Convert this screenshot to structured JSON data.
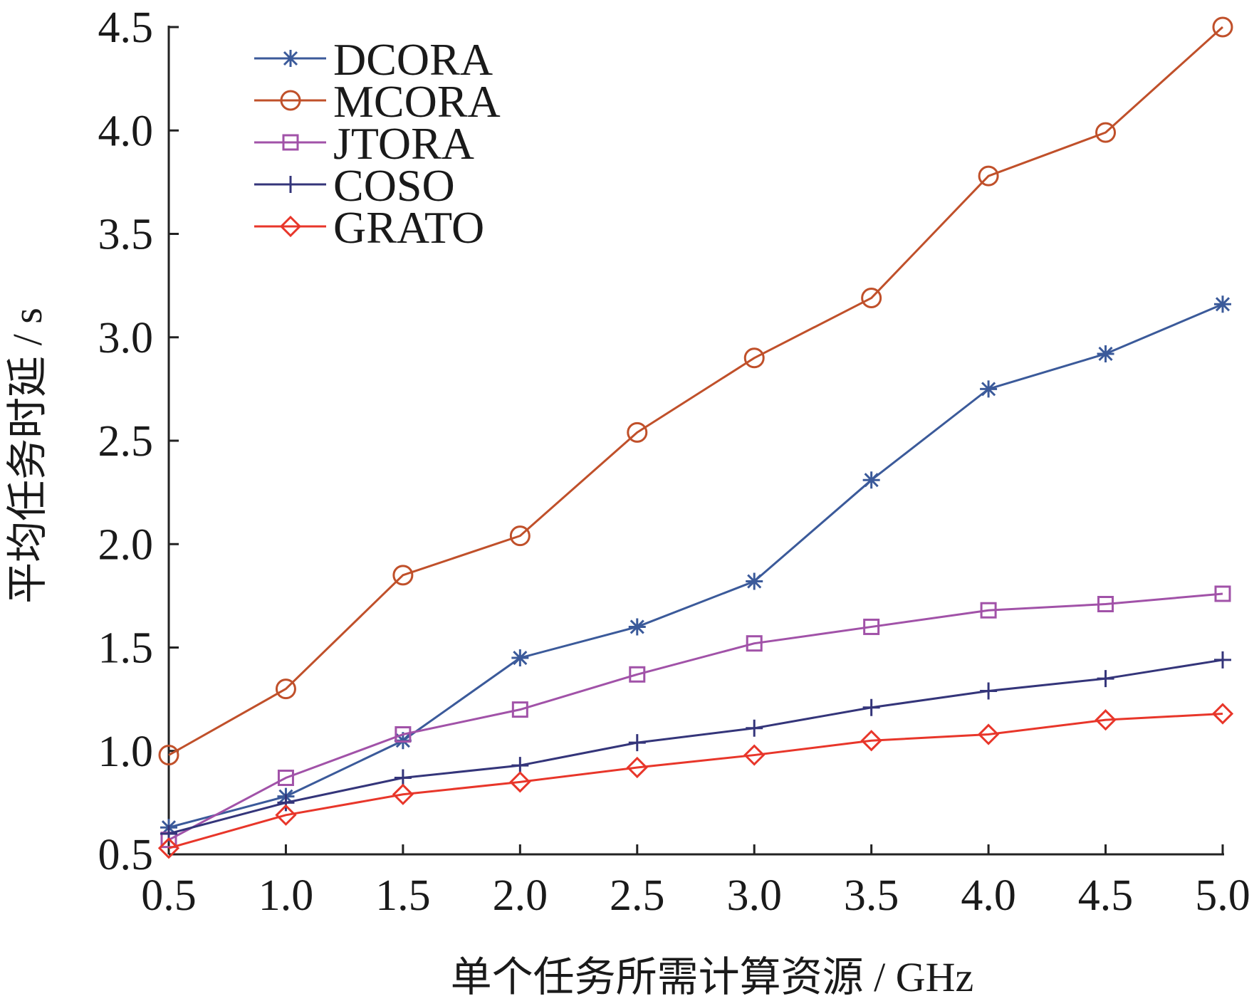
{
  "chart_data": {
    "type": "line",
    "xlabel": "单个任务所需计算资源 / GHz",
    "ylabel": "平均任务时延 / s",
    "x": [
      0.5,
      1.0,
      1.5,
      2.0,
      2.5,
      3.0,
      3.5,
      4.0,
      4.5,
      5.0
    ],
    "x_ticks": [
      "0.5",
      "1.0",
      "1.5",
      "2.0",
      "2.5",
      "3.0",
      "3.5",
      "4.0",
      "4.5",
      "5.0"
    ],
    "y_ticks": [
      "0.5",
      "1.0",
      "1.5",
      "2.0",
      "2.5",
      "3.0",
      "3.5",
      "4.0",
      "4.5"
    ],
    "xlim": [
      0.5,
      5.0
    ],
    "ylim": [
      0.5,
      4.5
    ],
    "grid": false,
    "legend_position": "top-left",
    "series": [
      {
        "name": "DCORA",
        "marker": "asterisk",
        "color": "#3b5a9a",
        "values": [
          0.63,
          0.78,
          1.05,
          1.45,
          1.6,
          1.82,
          2.31,
          2.75,
          2.92,
          3.16
        ]
      },
      {
        "name": "MCORA",
        "marker": "circle",
        "color": "#c0502a",
        "values": [
          0.98,
          1.3,
          1.85,
          2.04,
          2.54,
          2.9,
          3.19,
          3.78,
          3.99,
          4.5
        ]
      },
      {
        "name": "JTORA",
        "marker": "square",
        "color": "#a152a8",
        "values": [
          0.57,
          0.87,
          1.08,
          1.2,
          1.37,
          1.52,
          1.6,
          1.68,
          1.71,
          1.76
        ]
      },
      {
        "name": "COSO",
        "marker": "plus",
        "color": "#34357a",
        "values": [
          0.6,
          0.75,
          0.87,
          0.93,
          1.04,
          1.11,
          1.21,
          1.29,
          1.35,
          1.44
        ]
      },
      {
        "name": "GRATO",
        "marker": "diamond",
        "color": "#e8362a",
        "values": [
          0.53,
          0.69,
          0.79,
          0.85,
          0.92,
          0.98,
          1.05,
          1.08,
          1.15,
          1.18
        ]
      }
    ]
  }
}
